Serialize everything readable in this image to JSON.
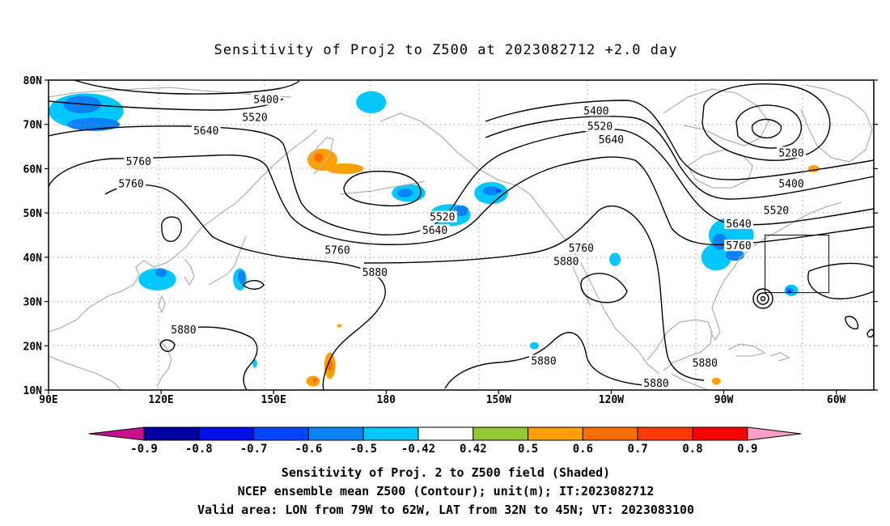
{
  "title": "Sensitivity of Proj2 to Z500 at 2023082712 +2.0 day",
  "map": {
    "lon_range": [
      90,
      310
    ],
    "lat_range": [
      10,
      80
    ],
    "y_ticks": [
      {
        "lat": 80,
        "label": "80N"
      },
      {
        "lat": 70,
        "label": "70N"
      },
      {
        "lat": 60,
        "label": "60N"
      },
      {
        "lat": 50,
        "label": "50N"
      },
      {
        "lat": 40,
        "label": "40N"
      },
      {
        "lat": 30,
        "label": "30N"
      },
      {
        "lat": 20,
        "label": "20N"
      },
      {
        "lat": 10,
        "label": "10N"
      }
    ],
    "x_ticks": [
      {
        "lon": 90,
        "label": "90E"
      },
      {
        "lon": 120,
        "label": "120E"
      },
      {
        "lon": 150,
        "label": "150E"
      },
      {
        "lon": 180,
        "label": "180"
      },
      {
        "lon": 210,
        "label": "150W"
      },
      {
        "lon": 240,
        "label": "120W"
      },
      {
        "lon": 270,
        "label": "90W"
      },
      {
        "lon": 300,
        "label": "60W"
      }
    ],
    "grid": "dotted",
    "valid_box": {
      "lon": [
        281,
        298
      ],
      "lat": [
        32,
        45
      ]
    },
    "contour_labels": [
      {
        "text": "5400",
        "lon": 148,
        "lat": 75.5
      },
      {
        "text": "5520",
        "lon": 145,
        "lat": 71.5
      },
      {
        "text": "5640",
        "lon": 132,
        "lat": 68.5
      },
      {
        "text": "5760",
        "lon": 114,
        "lat": 61.5
      },
      {
        "text": "5760",
        "lon": 112,
        "lat": 56.5
      },
      {
        "text": "5400",
        "lon": 236,
        "lat": 73
      },
      {
        "text": "5520",
        "lon": 237,
        "lat": 69.5
      },
      {
        "text": "5640",
        "lon": 240,
        "lat": 66.5
      },
      {
        "text": "5280",
        "lon": 288,
        "lat": 63.5
      },
      {
        "text": "5400",
        "lon": 288,
        "lat": 56.5
      },
      {
        "text": "5520",
        "lon": 284,
        "lat": 50.5
      },
      {
        "text": "5520",
        "lon": 195,
        "lat": 49
      },
      {
        "text": "5640",
        "lon": 193,
        "lat": 46
      },
      {
        "text": "5640",
        "lon": 274,
        "lat": 47.5
      },
      {
        "text": "5760",
        "lon": 274,
        "lat": 42.5
      },
      {
        "text": "5760",
        "lon": 167,
        "lat": 41.5
      },
      {
        "text": "5760",
        "lon": 232,
        "lat": 42
      },
      {
        "text": "5880",
        "lon": 177,
        "lat": 36.5
      },
      {
        "text": "5880",
        "lon": 228,
        "lat": 39
      },
      {
        "text": "5880",
        "lon": 126,
        "lat": 23.5
      },
      {
        "text": "5880",
        "lon": 222,
        "lat": 16.5
      },
      {
        "text": "5880",
        "lon": 265,
        "lat": 16
      },
      {
        "text": "5880",
        "lon": 252,
        "lat": 11.5
      }
    ],
    "shading": [
      {
        "lon": 100,
        "lat": 73,
        "rx": 10,
        "ry": 4,
        "value": -0.5
      },
      {
        "lon": 99,
        "lat": 74.5,
        "rx": 5,
        "ry": 2,
        "value": -0.6
      },
      {
        "lon": 102,
        "lat": 70,
        "rx": 7,
        "ry": 1.5,
        "value": -0.6
      },
      {
        "lon": 176,
        "lat": 75,
        "rx": 4,
        "ry": 2.5,
        "value": -0.5
      },
      {
        "lon": 163,
        "lat": 62,
        "rx": 4,
        "ry": 2.5,
        "value": 0.5
      },
      {
        "lon": 162,
        "lat": 62.5,
        "rx": 1.2,
        "ry": 1,
        "value": 0.6
      },
      {
        "lon": 169,
        "lat": 60,
        "rx": 5,
        "ry": 1.2,
        "value": 0.5
      },
      {
        "lon": 186,
        "lat": 54.5,
        "rx": 4.5,
        "ry": 2,
        "value": -0.5
      },
      {
        "lon": 185,
        "lat": 54.5,
        "rx": 2,
        "ry": 1,
        "value": -0.6
      },
      {
        "lon": 197,
        "lat": 49.5,
        "rx": 5.5,
        "ry": 2.5,
        "value": -0.5
      },
      {
        "lon": 200,
        "lat": 50.5,
        "rx": 2,
        "ry": 1.2,
        "value": -0.6
      },
      {
        "lon": 208,
        "lat": 54.5,
        "rx": 4.5,
        "ry": 2.5,
        "value": -0.5
      },
      {
        "lon": 208,
        "lat": 55,
        "rx": 2.2,
        "ry": 1,
        "value": -0.6
      },
      {
        "lon": 210,
        "lat": 55,
        "rx": 0.8,
        "ry": 0.4,
        "value": -0.7
      },
      {
        "lon": 119,
        "lat": 35,
        "rx": 5,
        "ry": 2.5,
        "value": -0.5
      },
      {
        "lon": 120,
        "lat": 36.5,
        "rx": 1.5,
        "ry": 1,
        "value": -0.6
      },
      {
        "lon": 141,
        "lat": 35,
        "rx": 1.8,
        "ry": 2.5,
        "value": -0.5
      },
      {
        "lon": 141.5,
        "lat": 35.5,
        "rx": 1,
        "ry": 1.5,
        "value": -0.6
      },
      {
        "lon": 241,
        "lat": 39.5,
        "rx": 1.5,
        "ry": 1.5,
        "value": -0.5
      },
      {
        "lon": 272,
        "lat": 45,
        "rx": 6,
        "ry": 4,
        "value": -0.5
      },
      {
        "lon": 268,
        "lat": 40,
        "rx": 4,
        "ry": 3,
        "value": -0.5
      },
      {
        "lon": 269,
        "lat": 43.5,
        "rx": 2,
        "ry": 1.8,
        "value": -0.6
      },
      {
        "lon": 273,
        "lat": 40.5,
        "rx": 2.5,
        "ry": 1.3,
        "value": -0.6
      },
      {
        "lon": 288,
        "lat": 32.5,
        "rx": 1.8,
        "ry": 1.3,
        "value": -0.5
      },
      {
        "lon": 287.5,
        "lat": 32.5,
        "rx": 1,
        "ry": 0.7,
        "value": -0.6
      },
      {
        "lon": 287.5,
        "lat": 32.2,
        "rx": 0.4,
        "ry": 0.3,
        "value": -0.8
      },
      {
        "lon": 165,
        "lat": 15.5,
        "rx": 1.5,
        "ry": 3,
        "value": 0.5
      },
      {
        "lon": 165,
        "lat": 15.5,
        "rx": 0.7,
        "ry": 1.2,
        "value": 0.6
      },
      {
        "lon": 160.5,
        "lat": 12,
        "rx": 1.8,
        "ry": 1.2,
        "value": 0.5
      },
      {
        "lon": 161,
        "lat": 12.2,
        "rx": 0.6,
        "ry": 0.5,
        "value": 0.6
      },
      {
        "lon": 294,
        "lat": 60,
        "rx": 1.5,
        "ry": 0.8,
        "value": 0.5
      },
      {
        "lon": 268,
        "lat": 12,
        "rx": 1.2,
        "ry": 0.8,
        "value": 0.5
      },
      {
        "lon": 219.5,
        "lat": 20,
        "rx": 1.2,
        "ry": 0.8,
        "value": -0.5
      },
      {
        "lon": 145,
        "lat": 16,
        "rx": 0.6,
        "ry": 1,
        "value": -0.5
      },
      {
        "lon": 167.5,
        "lat": 24.5,
        "rx": 0.6,
        "ry": 0.4,
        "value": 0.5
      }
    ]
  },
  "colorbar": {
    "labels": [
      "-0.9",
      "-0.8",
      "-0.7",
      "-0.6",
      "-0.5",
      "-0.42",
      "0.42",
      "0.5",
      "0.6",
      "0.7",
      "0.8",
      "0.9"
    ],
    "colors": [
      "#0000a0",
      "#0010e8",
      "#0046ff",
      "#0a82f5",
      "#00c8ff",
      "#ffffff",
      "#96c834",
      "#ffa000",
      "#ff6e00",
      "#ff3c00",
      "#ff0000"
    ],
    "left_arrow_color": "#c8108c",
    "right_arrow_color": "#ff9ec6"
  },
  "footer": [
    "Sensitivity of Proj. 2 to Z500 field (Shaded)",
    "NCEP ensemble mean Z500 (Contour); unit(m); IT:2023082712",
    "Valid area: LON from 79W to 62W, LAT from 32N to 45N; VT: 2023083100"
  ]
}
